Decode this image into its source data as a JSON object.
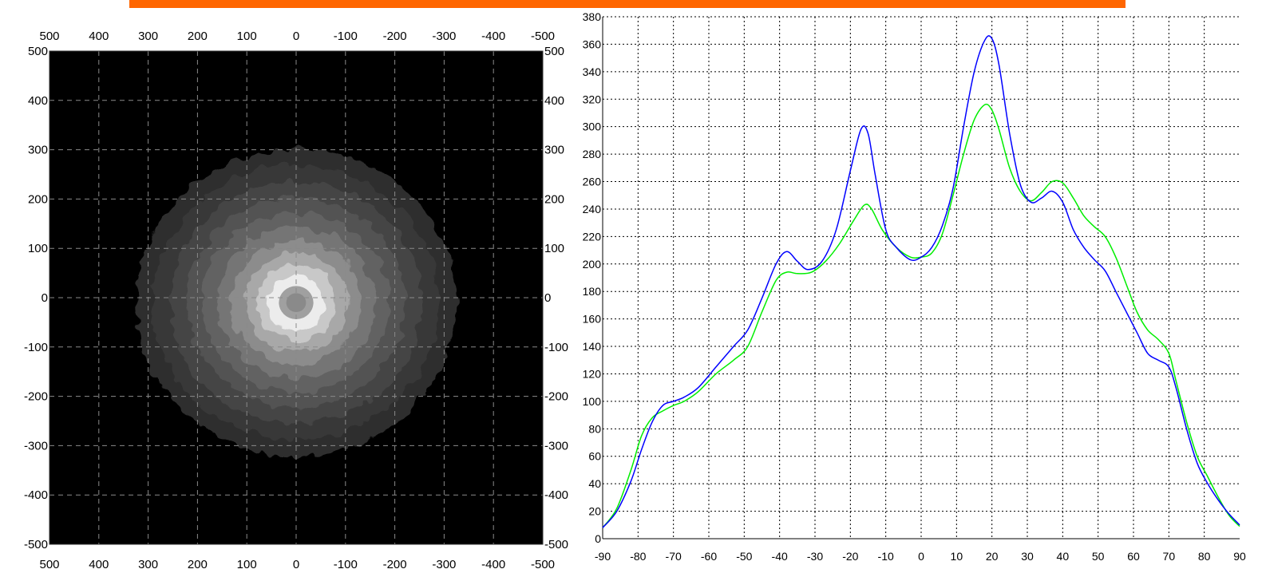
{
  "header": {
    "accent_color": "#ff6600"
  },
  "chart_data": [
    {
      "type": "heatmap",
      "colormap": "grayscale",
      "background": "#000000",
      "grid": "dashed",
      "xlim": [
        500,
        -500
      ],
      "ylim": [
        -500,
        500
      ],
      "x_ticks": [
        "500",
        "400",
        "300",
        "200",
        "100",
        "0",
        "-100",
        "-200",
        "-300",
        "-400",
        "-500"
      ],
      "y_ticks": [
        "500",
        "400",
        "300",
        "200",
        "100",
        "0",
        "-100",
        "-200",
        "-300",
        "-400",
        "-500"
      ],
      "contour_levels": [
        {
          "level": 1,
          "color": "#2e2e2e",
          "radius": 325
        },
        {
          "level": 2,
          "color": "#383838",
          "radius": 290
        },
        {
          "level": 3,
          "color": "#454545",
          "radius": 255
        },
        {
          "level": 4,
          "color": "#525252",
          "radius": 222
        },
        {
          "level": 5,
          "color": "#626262",
          "radius": 190
        },
        {
          "level": 6,
          "color": "#757575",
          "radius": 160
        },
        {
          "level": 7,
          "color": "#8c8c8c",
          "radius": 132
        },
        {
          "level": 8,
          "color": "#a8a8a8",
          "radius": 105
        },
        {
          "level": 9,
          "color": "#c8c8c8",
          "radius": 80
        },
        {
          "level": 10,
          "color": "#ececec",
          "radius": 58
        },
        {
          "level": 11,
          "color": "#a0a0a0",
          "radius": 35
        },
        {
          "level": 12,
          "color": "#8a8a8a",
          "radius": 20
        }
      ],
      "center": [
        0,
        -10
      ]
    },
    {
      "type": "line",
      "grid": "dotted",
      "xlim": [
        -90,
        90
      ],
      "ylim": [
        0,
        380
      ],
      "x_ticks": [
        "-90",
        "-80",
        "-70",
        "-60",
        "-50",
        "-40",
        "-30",
        "-20",
        "-10",
        "0",
        "10",
        "20",
        "30",
        "40",
        "50",
        "60",
        "70",
        "80",
        "90"
      ],
      "y_ticks": [
        "0",
        "20",
        "40",
        "60",
        "80",
        "100",
        "120",
        "140",
        "160",
        "180",
        "200",
        "220",
        "240",
        "260",
        "280",
        "300",
        "320",
        "340",
        "360",
        "380"
      ],
      "series": [
        {
          "color": "#0000ff",
          "points": [
            [
              -90,
              8
            ],
            [
              -86,
              20
            ],
            [
              -82,
              42
            ],
            [
              -79,
              65
            ],
            [
              -76,
              85
            ],
            [
              -73,
              97
            ],
            [
              -70,
              100
            ],
            [
              -67,
              103
            ],
            [
              -63,
              110
            ],
            [
              -58,
              125
            ],
            [
              -53,
              140
            ],
            [
              -49,
              152
            ],
            [
              -45,
              175
            ],
            [
              -41,
              200
            ],
            [
              -38,
              209
            ],
            [
              -35,
              202
            ],
            [
              -32,
              196
            ],
            [
              -28,
              202
            ],
            [
              -24,
              225
            ],
            [
              -20,
              268
            ],
            [
              -17,
              298
            ],
            [
              -15,
              295
            ],
            [
              -13,
              265
            ],
            [
              -10,
              225
            ],
            [
              -7,
              212
            ],
            [
              -3,
              203
            ],
            [
              0,
              205
            ],
            [
              3,
              212
            ],
            [
              6,
              228
            ],
            [
              9,
              255
            ],
            [
              12,
              300
            ],
            [
              15,
              340
            ],
            [
              18,
              363
            ],
            [
              20,
              364
            ],
            [
              22,
              345
            ],
            [
              25,
              295
            ],
            [
              28,
              258
            ],
            [
              31,
              245
            ],
            [
              34,
              248
            ],
            [
              37,
              253
            ],
            [
              40,
              245
            ],
            [
              43,
              225
            ],
            [
              46,
              212
            ],
            [
              49,
              203
            ],
            [
              52,
              195
            ],
            [
              55,
              180
            ],
            [
              58,
              165
            ],
            [
              61,
              150
            ],
            [
              64,
              135
            ],
            [
              67,
              130
            ],
            [
              70,
              125
            ],
            [
              72,
              110
            ],
            [
              75,
              80
            ],
            [
              78,
              55
            ],
            [
              81,
              40
            ],
            [
              84,
              28
            ],
            [
              87,
              18
            ],
            [
              90,
              10
            ]
          ]
        },
        {
          "color": "#00ee00",
          "points": [
            [
              -90,
              8
            ],
            [
              -86,
              22
            ],
            [
              -82,
              50
            ],
            [
              -79,
              75
            ],
            [
              -76,
              88
            ],
            [
              -73,
              93
            ],
            [
              -70,
              97
            ],
            [
              -67,
              100
            ],
            [
              -63,
              107
            ],
            [
              -58,
              120
            ],
            [
              -53,
              130
            ],
            [
              -49,
              140
            ],
            [
              -45,
              165
            ],
            [
              -41,
              188
            ],
            [
              -38,
              194
            ],
            [
              -35,
              193
            ],
            [
              -31,
              194
            ],
            [
              -27,
              202
            ],
            [
              -23,
              215
            ],
            [
              -19,
              232
            ],
            [
              -16,
              243
            ],
            [
              -14,
              240
            ],
            [
              -11,
              225
            ],
            [
              -7,
              212
            ],
            [
              -3,
              205
            ],
            [
              0,
              205
            ],
            [
              3,
              208
            ],
            [
              6,
              222
            ],
            [
              9,
              250
            ],
            [
              12,
              280
            ],
            [
              15,
              305
            ],
            [
              18,
              316
            ],
            [
              20,
              312
            ],
            [
              22,
              298
            ],
            [
              25,
              270
            ],
            [
              28,
              253
            ],
            [
              31,
              246
            ],
            [
              34,
              252
            ],
            [
              37,
              260
            ],
            [
              40,
              259
            ],
            [
              43,
              248
            ],
            [
              46,
              235
            ],
            [
              49,
              227
            ],
            [
              52,
              220
            ],
            [
              55,
              205
            ],
            [
              58,
              185
            ],
            [
              61,
              165
            ],
            [
              64,
              152
            ],
            [
              67,
              145
            ],
            [
              70,
              135
            ],
            [
              72,
              115
            ],
            [
              75,
              85
            ],
            [
              78,
              60
            ],
            [
              81,
              45
            ],
            [
              84,
              30
            ],
            [
              87,
              17
            ],
            [
              90,
              9
            ]
          ]
        }
      ]
    }
  ]
}
